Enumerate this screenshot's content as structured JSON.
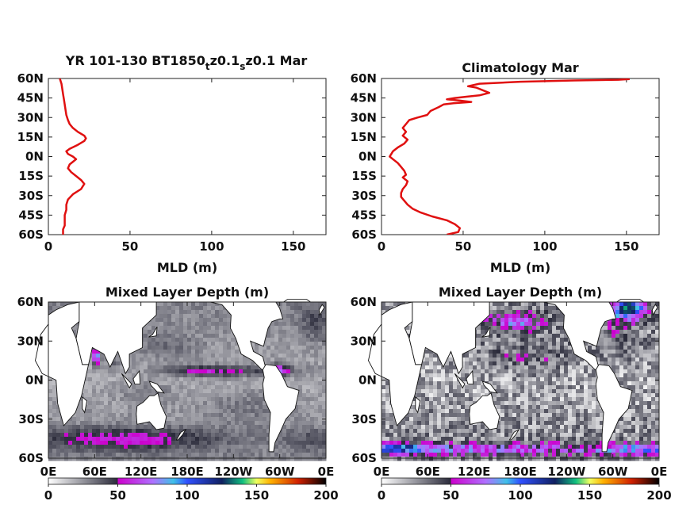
{
  "colors": {
    "profile_line": "#e01010",
    "colormap_stops": [
      [
        0,
        "#ffffff"
      ],
      [
        50,
        "#2a2a3a"
      ],
      [
        50,
        "#cc00cc"
      ],
      [
        75,
        "#b070ff"
      ],
      [
        90,
        "#40c0e8"
      ],
      [
        100,
        "#3050ff"
      ],
      [
        125,
        "#102060"
      ],
      [
        140,
        "#10c080"
      ],
      [
        150,
        "#f0ff60"
      ],
      [
        160,
        "#ffb000"
      ],
      [
        180,
        "#d02000"
      ],
      [
        200,
        "#000000"
      ]
    ]
  },
  "chart_data": [
    {
      "type": "line",
      "title": "YR 101-130 BT1850",
      "title_parts": [
        {
          "text": "YR 101-130 BT1850",
          "role": "normal"
        },
        {
          "text": "t",
          "role": "sub"
        },
        {
          "text": "z0.1",
          "role": "normal"
        },
        {
          "text": "s",
          "role": "sub"
        },
        {
          "text": "z0.1 Mar",
          "role": "normal"
        }
      ],
      "xlabel": "MLD (m)",
      "ylabel": "",
      "xlim": [
        0,
        170
      ],
      "ylim": [
        -60,
        60
      ],
      "xticks": [
        "0",
        "50",
        "100",
        "150"
      ],
      "yticks": [
        "60N",
        "45N",
        "30N",
        "15N",
        "0N",
        "15S",
        "30S",
        "45S",
        "60S"
      ],
      "series": [
        {
          "points": [
            [
              7,
              60
            ],
            [
              8,
              56
            ],
            [
              8.5,
              52
            ],
            [
              9,
              48
            ],
            [
              9.5,
              44
            ],
            [
              10,
              40
            ],
            [
              10.5,
              36
            ],
            [
              11,
              32
            ],
            [
              12,
              28
            ],
            [
              13,
              25
            ],
            [
              15,
              22
            ],
            [
              18,
              19
            ],
            [
              22,
              16
            ],
            [
              23,
              14
            ],
            [
              22,
              12
            ],
            [
              18,
              9
            ],
            [
              13,
              6
            ],
            [
              11,
              4
            ],
            [
              12,
              2
            ],
            [
              15,
              0
            ],
            [
              17,
              -2
            ],
            [
              15,
              -4
            ],
            [
              13,
              -6
            ],
            [
              12,
              -9
            ],
            [
              14,
              -12
            ],
            [
              17,
              -15
            ],
            [
              20,
              -18
            ],
            [
              22,
              -21
            ],
            [
              20,
              -25
            ],
            [
              15,
              -29
            ],
            [
              12,
              -33
            ],
            [
              11,
              -37
            ],
            [
              11,
              -41
            ],
            [
              10,
              -45
            ],
            [
              10,
              -49
            ],
            [
              10,
              -53
            ],
            [
              9,
              -56
            ],
            [
              9,
              -60
            ]
          ]
        }
      ]
    },
    {
      "type": "line",
      "title": "Climatology Mar",
      "xlabel": "MLD (m)",
      "ylabel": "",
      "xlim": [
        0,
        170
      ],
      "ylim": [
        -60,
        60
      ],
      "xticks": [
        "0",
        "50",
        "100",
        "150"
      ],
      "yticks": [
        "60N",
        "45N",
        "30N",
        "15N",
        "0N",
        "15S",
        "30S",
        "45S",
        "60S"
      ],
      "series": [
        {
          "points": [
            [
              152,
              59.5
            ],
            [
              145,
              59
            ],
            [
              118,
              58.5
            ],
            [
              85,
              57.5
            ],
            [
              60,
              56
            ],
            [
              53,
              54
            ],
            [
              58,
              53
            ],
            [
              62,
              51
            ],
            [
              66,
              49
            ],
            [
              60,
              47
            ],
            [
              52,
              46
            ],
            [
              45,
              45
            ],
            [
              40,
              44
            ],
            [
              48,
              43
            ],
            [
              55,
              42
            ],
            [
              44,
              41
            ],
            [
              38,
              40
            ],
            [
              35,
              38
            ],
            [
              30,
              35
            ],
            [
              28,
              32
            ],
            [
              22,
              30
            ],
            [
              17,
              28
            ],
            [
              15,
              25
            ],
            [
              13,
              22
            ],
            [
              15,
              19
            ],
            [
              13,
              16
            ],
            [
              16,
              13
            ],
            [
              14,
              10
            ],
            [
              10,
              7
            ],
            [
              7,
              4
            ],
            [
              6,
              2
            ],
            [
              5,
              0
            ],
            [
              7,
              -2
            ],
            [
              10,
              -5
            ],
            [
              12,
              -8
            ],
            [
              14,
              -11
            ],
            [
              15,
              -14
            ],
            [
              13,
              -16
            ],
            [
              16,
              -19
            ],
            [
              15,
              -22
            ],
            [
              13,
              -25
            ],
            [
              12,
              -28
            ],
            [
              12,
              -31
            ],
            [
              14,
              -34
            ],
            [
              16,
              -37
            ],
            [
              19,
              -40
            ],
            [
              24,
              -43
            ],
            [
              31,
              -46
            ],
            [
              40,
              -49
            ],
            [
              45,
              -52
            ],
            [
              48,
              -55
            ],
            [
              47,
              -58
            ],
            [
              40,
              -60
            ]
          ]
        }
      ]
    },
    {
      "type": "heatmap",
      "title": "Mixed Layer Depth (m)",
      "xticks": [
        "0E",
        "60E",
        "120E",
        "180E",
        "120W",
        "60W",
        "0E"
      ],
      "yticks": [
        "60N",
        "30N",
        "0N",
        "30S",
        "60S"
      ],
      "xlim": [
        0,
        360
      ],
      "ylim": [
        -60,
        60
      ],
      "colorbar": {
        "range": [
          0,
          200
        ],
        "ticks": [
          "0",
          "50",
          "100",
          "150",
          "200"
        ]
      },
      "field_model": {
        "base": 20,
        "blobs": [
          {
            "lon": 95,
            "lat": -45,
            "sx": 90,
            "sy": 6,
            "amp": 30
          },
          {
            "lon": 250,
            "lat": 7,
            "sx": 55,
            "sy": 3,
            "amp": 22
          },
          {
            "lon": 195,
            "lat": 7,
            "sx": 30,
            "sy": 3,
            "amp": 20
          },
          {
            "lon": 300,
            "lat": 8,
            "sx": 8,
            "sy": 3,
            "amp": 38
          },
          {
            "lon": 130,
            "lat": -10,
            "sx": 25,
            "sy": 6,
            "amp": 10
          },
          {
            "lon": 62,
            "lat": 18,
            "sx": 3,
            "sy": 4,
            "amp": 75
          },
          {
            "lon": 83,
            "lat": 14,
            "sx": 6,
            "sy": 5,
            "amp": 14
          },
          {
            "lon": 258,
            "lat": -20,
            "sx": 40,
            "sy": 10,
            "amp": 8
          },
          {
            "lon": 155,
            "lat": 25,
            "sx": 30,
            "sy": 8,
            "amp": 10
          },
          {
            "lon": 345,
            "lat": 45,
            "sx": 15,
            "sy": 10,
            "amp": 15
          }
        ],
        "noise": 6
      }
    },
    {
      "type": "heatmap",
      "title": "Mixed Layer Depth (m)",
      "xticks": [
        "0E",
        "60E",
        "120E",
        "180E",
        "120W",
        "60W",
        "0E"
      ],
      "yticks": [
        "60N",
        "30N",
        "0N",
        "30S",
        "60S"
      ],
      "xlim": [
        0,
        360
      ],
      "ylim": [
        -60,
        60
      ],
      "colorbar": {
        "range": [
          0,
          200
        ],
        "ticks": [
          "0",
          "50",
          "100",
          "150",
          "200"
        ]
      },
      "field_model": {
        "base": 20,
        "blobs": [
          {
            "lon": 120,
            "lat": -53,
            "sx": 120,
            "sy": 3,
            "amp": 45
          },
          {
            "lon": 30,
            "lat": -52,
            "sx": 20,
            "sy": 3,
            "amp": 45
          },
          {
            "lon": 320,
            "lat": -53,
            "sx": 40,
            "sy": 3,
            "amp": 40
          },
          {
            "lon": 175,
            "lat": 45,
            "sx": 25,
            "sy": 5,
            "amp": 45
          },
          {
            "lon": 320,
            "lat": 55,
            "sx": 15,
            "sy": 6,
            "amp": 100
          },
          {
            "lon": 190,
            "lat": 20,
            "sx": 40,
            "sy": 10,
            "amp": 15
          },
          {
            "lon": 310,
            "lat": 30,
            "sx": 20,
            "sy": 10,
            "amp": 15
          }
        ],
        "noise": 18
      }
    }
  ]
}
